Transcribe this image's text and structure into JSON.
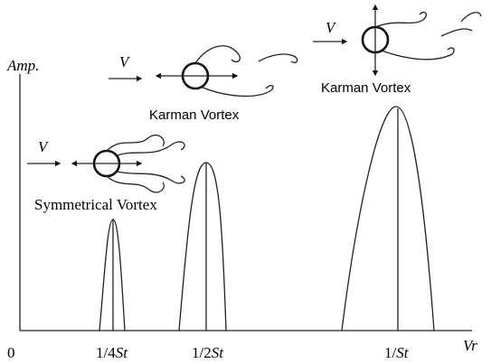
{
  "axes": {
    "y_label": "Amp.",
    "x_label": "Vr",
    "origin": "0"
  },
  "ticks": [
    {
      "prefix": "1/4",
      "symbol": "St"
    },
    {
      "prefix": "1/2",
      "symbol": "St"
    },
    {
      "prefix": "1/",
      "symbol": "St"
    }
  ],
  "vortices": [
    {
      "label": "Symmetrical  Vortex",
      "flow": "V"
    },
    {
      "label": "Karman Vortex",
      "flow": "V"
    },
    {
      "label": "Karman Vortex",
      "flow": "V"
    }
  ]
}
